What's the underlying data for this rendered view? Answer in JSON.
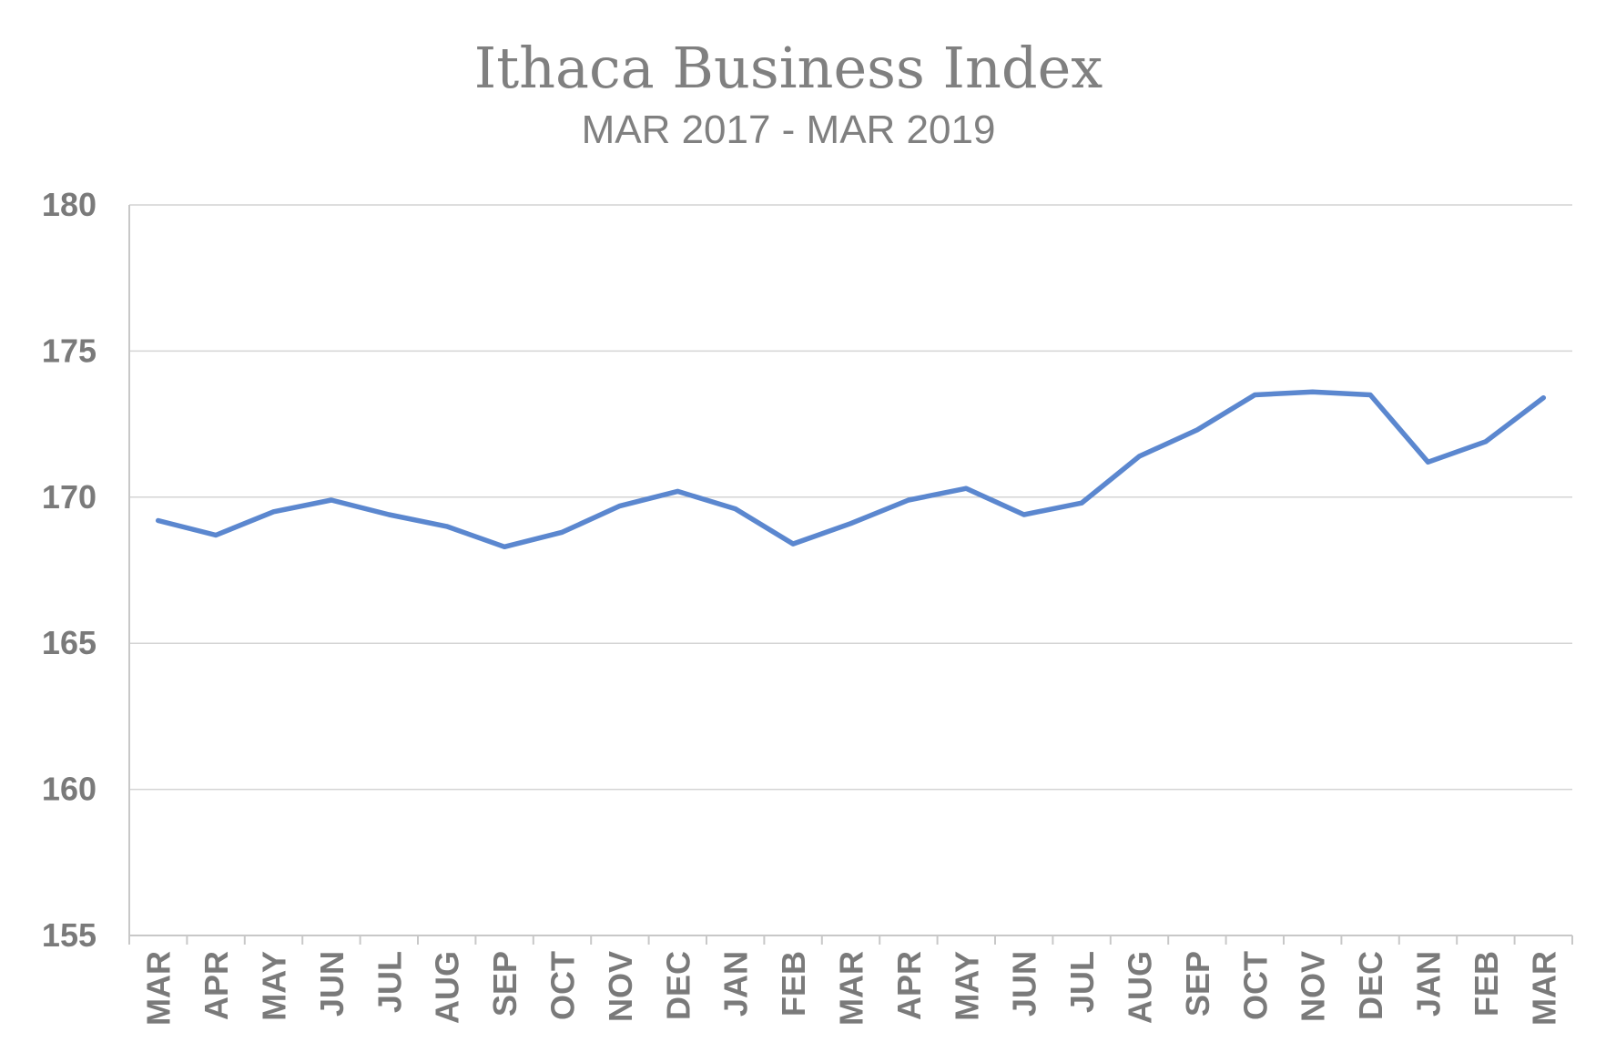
{
  "chart_data": {
    "type": "line",
    "title": "Ithaca Business Index",
    "subtitle": "MAR 2017 - MAR 2019",
    "xlabel": "",
    "ylabel": "",
    "ylim": [
      155,
      180
    ],
    "yticks": [
      "155",
      "160",
      "165",
      "170",
      "175",
      "180"
    ],
    "grid": true,
    "legend": "none",
    "categories": [
      "MAR",
      "APR",
      "MAY",
      "JUN",
      "JUL",
      "AUG",
      "SEP",
      "OCT",
      "NOV",
      "DEC",
      "JAN",
      "FEB",
      "MAR",
      "APR",
      "MAY",
      "JUN",
      "JUL",
      "AUG",
      "SEP",
      "OCT",
      "NOV",
      "DEC",
      "JAN",
      "FEB",
      "MAR"
    ],
    "series": [
      {
        "color": "#5b87cf",
        "values": [
          169.2,
          168.7,
          169.5,
          169.9,
          169.4,
          169.0,
          168.3,
          168.8,
          169.7,
          170.2,
          169.6,
          168.4,
          169.1,
          169.9,
          170.3,
          169.4,
          169.8,
          171.4,
          172.3,
          173.5,
          173.6,
          173.5,
          171.2,
          171.9,
          173.4
        ]
      }
    ]
  }
}
